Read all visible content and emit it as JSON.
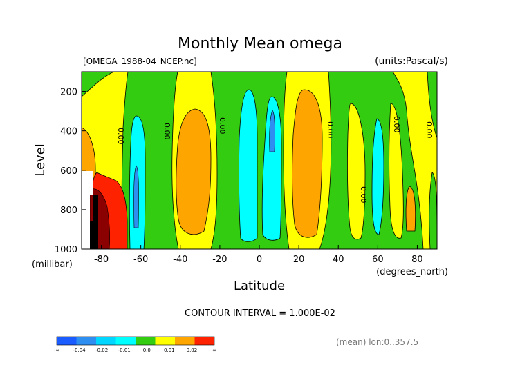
{
  "chart_data": {
    "type": "contour",
    "title": "Monthly Mean omega",
    "file_label": "[OMEGA_1988-04_NCEP.nc]",
    "units_label": "(units:Pascal/s)",
    "xlabel": "Latitude",
    "x_units": "(degrees_north)",
    "ylabel": "Level",
    "y_units": "(millibar)",
    "xlim": [
      -90,
      90
    ],
    "ylim": [
      1000,
      100
    ],
    "x_ticks": [
      -80,
      -60,
      -40,
      -20,
      0,
      20,
      40,
      60,
      80
    ],
    "y_ticks": [
      200,
      400,
      600,
      800,
      1000
    ],
    "contour_interval_text": "CONTOUR INTERVAL = 1.000E-02",
    "contour_label": "0.00",
    "mean_note": "(mean) lon:0..357.5",
    "colorbar": {
      "labels": [
        "-∞",
        "-0.04",
        "-0.02",
        "-0.01",
        "0.0",
        "0.01",
        "0.02",
        "∞"
      ],
      "colors": [
        "#1a5cff",
        "#2e8ff0",
        "#00d6ff",
        "#00ffff",
        "#33cc11",
        "#ffff00",
        "#ffa500",
        "#ff2200"
      ]
    },
    "bands": [
      {
        "lat_from": -90,
        "lat_to": -78,
        "range": "0.0 to 0.01",
        "color": "#ffff00"
      },
      {
        "lat_from": -78,
        "lat_to": -64,
        "range": "0.02 to ∞",
        "color": "#ff2200"
      },
      {
        "lat_from": -64,
        "lat_to": -58,
        "range": "-0.02 to -0.01",
        "color": "#00ffff"
      },
      {
        "lat_from": -58,
        "lat_to": -50,
        "range": "-0.01 to 0.0",
        "color": "#33cc11"
      },
      {
        "lat_from": -50,
        "lat_to": -18,
        "range": "0.01 to 0.02",
        "color": "#ffa500"
      },
      {
        "lat_from": -18,
        "lat_to": -10,
        "range": "-0.01 to 0.0",
        "color": "#33cc11"
      },
      {
        "lat_from": -10,
        "lat_to": 2,
        "range": "-0.02 to -0.01",
        "color": "#00ffff"
      },
      {
        "lat_from": 2,
        "lat_to": 12,
        "range": "-0.04 to -0.02",
        "color": "#2e8ff0"
      },
      {
        "lat_from": 12,
        "lat_to": 36,
        "range": "0.01 to 0.02",
        "color": "#ffa500"
      },
      {
        "lat_from": 36,
        "lat_to": 48,
        "range": "-0.01 to 0.0",
        "color": "#33cc11"
      },
      {
        "lat_from": 48,
        "lat_to": 54,
        "range": "0.0 to 0.01",
        "color": "#ffff00"
      },
      {
        "lat_from": 54,
        "lat_to": 60,
        "range": "-0.02 to -0.01",
        "color": "#00ffff"
      },
      {
        "lat_from": 60,
        "lat_to": 74,
        "range": "0.01 to 0.02",
        "color": "#ffa500"
      },
      {
        "lat_from": 74,
        "lat_to": 90,
        "range": "0.0 to 0.01",
        "color": "#ffff00"
      }
    ]
  }
}
